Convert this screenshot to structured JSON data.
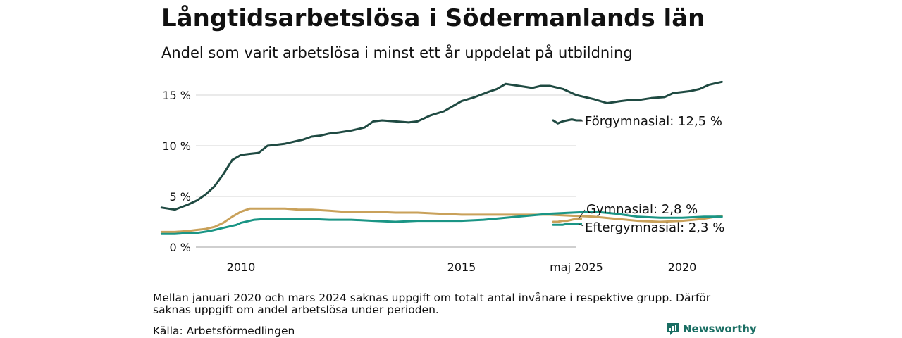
{
  "title": "Långtidsarbetslösa i Södermanlands län",
  "subtitle": "Andel som varit arbetslösa i minst ett år uppdelat på utbildning",
  "note": "Mellan januari 2020 och mars 2024 saknas uppgift om totalt antal invånare i respektive grupp. Därför saknas uppgift om andel arbetslösa under perioden.",
  "source": "Källa: Arbetsförmedlingen",
  "brand": "Newsworthy",
  "chart_data": {
    "type": "line",
    "y_ticks": [
      {
        "value": 0,
        "label": "0 %"
      },
      {
        "value": 5,
        "label": "5 %"
      },
      {
        "value": 10,
        "label": "10 %"
      },
      {
        "value": 15,
        "label": "15 %"
      }
    ],
    "x_ticks": [
      {
        "value": 2010,
        "label": "2010"
      },
      {
        "value": 2015,
        "label": "2015"
      },
      {
        "value": 2020,
        "label": "2020"
      }
    ],
    "recent_tick_label": "maj 2025",
    "ylim": [
      0,
      17
    ],
    "grid": true,
    "series": [
      {
        "name": "Förgymnasial",
        "end_label": "Förgymnasial: 12,5 %",
        "color": "#1f4a42",
        "x": [
          2008.2,
          2008.5,
          2008.8,
          2009.0,
          2009.2,
          2009.4,
          2009.6,
          2009.8,
          2010.0,
          2010.2,
          2010.4,
          2010.6,
          2010.8,
          2011.0,
          2011.2,
          2011.4,
          2011.6,
          2011.8,
          2012.0,
          2012.2,
          2012.5,
          2012.8,
          2013.0,
          2013.2,
          2013.5,
          2013.8,
          2014.0,
          2014.3,
          2014.6,
          2014.8,
          2015.0,
          2015.3,
          2015.6,
          2015.8,
          2016.0,
          2016.3,
          2016.6,
          2016.8,
          2017.0,
          2017.3,
          2017.6,
          2017.8,
          2018.0,
          2018.3,
          2018.6,
          2018.8,
          2019.0,
          2019.3,
          2019.6,
          2019.8,
          2020.0,
          2020.2,
          2020.4,
          2020.6,
          2020.8,
          2020.9
        ],
        "y": [
          3.9,
          3.7,
          4.2,
          4.6,
          5.2,
          6.0,
          7.2,
          8.6,
          9.1,
          9.2,
          9.3,
          10.0,
          10.1,
          10.2,
          10.4,
          10.6,
          10.9,
          11.0,
          11.2,
          11.3,
          11.5,
          11.8,
          12.4,
          12.5,
          12.4,
          12.3,
          12.4,
          13.0,
          13.4,
          13.9,
          14.4,
          14.8,
          15.3,
          15.6,
          16.1,
          15.9,
          15.7,
          15.9,
          15.9,
          15.6,
          15.0,
          14.8,
          14.6,
          14.2,
          14.4,
          14.5,
          14.5,
          14.7,
          14.8,
          15.2,
          15.3,
          15.4,
          15.6,
          16.0,
          16.2,
          16.3
        ],
        "recent_x": [
          2024.2,
          2024.4,
          2024.6,
          2024.8,
          2025.0,
          2025.2,
          2025.4
        ],
        "recent_y": [
          12.5,
          12.2,
          12.4,
          12.5,
          12.6,
          12.5,
          12.5
        ]
      },
      {
        "name": "Gymnasial",
        "end_label": "Gymnasial:  2,8 %",
        "color": "#c9a15a",
        "x": [
          2008.2,
          2008.5,
          2008.8,
          2009.0,
          2009.2,
          2009.4,
          2009.6,
          2009.8,
          2010.0,
          2010.2,
          2010.4,
          2010.6,
          2010.8,
          2011.0,
          2011.3,
          2011.6,
          2012.0,
          2012.3,
          2012.6,
          2013.0,
          2013.5,
          2014.0,
          2014.5,
          2015.0,
          2015.5,
          2016.0,
          2016.5,
          2017.0,
          2017.5,
          2018.0,
          2018.5,
          2019.0,
          2019.5,
          2020.0,
          2020.5,
          2020.9
        ],
        "y": [
          1.5,
          1.5,
          1.6,
          1.7,
          1.8,
          2.0,
          2.4,
          3.0,
          3.5,
          3.8,
          3.8,
          3.8,
          3.8,
          3.8,
          3.7,
          3.7,
          3.6,
          3.5,
          3.5,
          3.5,
          3.4,
          3.4,
          3.3,
          3.2,
          3.2,
          3.2,
          3.2,
          3.2,
          3.1,
          3.0,
          2.8,
          2.6,
          2.5,
          2.6,
          2.8,
          3.1
        ],
        "recent_x": [
          2024.2,
          2024.4,
          2024.6,
          2024.8,
          2025.0,
          2025.2,
          2025.4
        ],
        "recent_y": [
          2.5,
          2.5,
          2.6,
          2.6,
          2.7,
          2.8,
          2.8
        ]
      },
      {
        "name": "Eftergymnasial",
        "end_label": "Eftergymnasial:  2,3 %",
        "color": "#1a9585",
        "x": [
          2008.2,
          2008.5,
          2008.8,
          2009.0,
          2009.3,
          2009.6,
          2009.9,
          2010.0,
          2010.3,
          2010.6,
          2011.0,
          2011.5,
          2012.0,
          2012.5,
          2013.0,
          2013.5,
          2014.0,
          2014.5,
          2015.0,
          2015.5,
          2016.0,
          2016.5,
          2017.0,
          2017.5,
          2018.0,
          2018.5,
          2019.0,
          2019.5,
          2020.0,
          2020.5,
          2020.9
        ],
        "y": [
          1.3,
          1.3,
          1.4,
          1.4,
          1.6,
          1.9,
          2.2,
          2.4,
          2.7,
          2.8,
          2.8,
          2.8,
          2.7,
          2.7,
          2.6,
          2.5,
          2.6,
          2.6,
          2.6,
          2.7,
          2.9,
          3.1,
          3.3,
          3.4,
          3.5,
          3.3,
          3.0,
          2.9,
          2.9,
          3.0,
          3.0
        ],
        "recent_x": [
          2024.2,
          2024.4,
          2024.6,
          2024.8,
          2025.0,
          2025.2,
          2025.4
        ],
        "recent_y": [
          2.2,
          2.2,
          2.2,
          2.3,
          2.3,
          2.3,
          2.3
        ]
      }
    ]
  }
}
